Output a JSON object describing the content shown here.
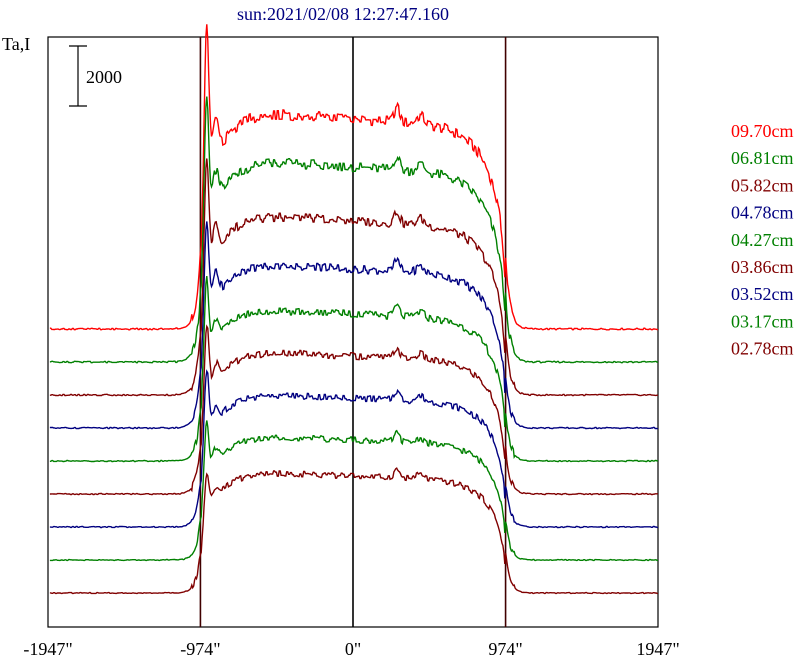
{
  "chart_data": {
    "type": "line",
    "title": "sun:2021/02/08 12:27:47.160",
    "ylabel": "Ta,I",
    "scale_bar_label": "2000",
    "scale_bar_value": 2000,
    "x_ticks": [
      {
        "value": -1947,
        "label": "-1947\""
      },
      {
        "value": -974,
        "label": "-974\""
      },
      {
        "value": 0,
        "label": "0\""
      },
      {
        "value": 974,
        "label": "974\""
      },
      {
        "value": 1947,
        "label": "1947\""
      }
    ],
    "xlim": [
      -1947,
      1947
    ],
    "vertical_lines": [
      -974,
      0,
      974
    ],
    "series": [
      {
        "name": "09.70cm",
        "color": "#ff0000",
        "baseline": 10000,
        "plateau": 7000,
        "limb": 5600
      },
      {
        "name": "06.81cm",
        "color": "#008000",
        "baseline": 8900,
        "plateau": 6500,
        "limb": 4700
      },
      {
        "name": "05.82cm",
        "color": "#800000",
        "baseline": 7800,
        "plateau": 5800,
        "limb": 4100
      },
      {
        "name": "04.78cm",
        "color": "#000080",
        "baseline": 6700,
        "plateau": 5300,
        "limb": 3600
      },
      {
        "name": "04.27cm",
        "color": "#008000",
        "baseline": 5600,
        "plateau": 4900,
        "limb": 3000
      },
      {
        "name": "03.86cm",
        "color": "#800000",
        "baseline": 4500,
        "plateau": 4600,
        "limb": 2700
      },
      {
        "name": "03.52cm",
        "color": "#000080",
        "baseline": 3400,
        "plateau": 4300,
        "limb": 2500
      },
      {
        "name": "03.17cm",
        "color": "#008000",
        "baseline": 2300,
        "plateau": 4000,
        "limb": 2100
      },
      {
        "name": "02.78cm",
        "color": "#800000",
        "baseline": 1200,
        "plateau": 3900,
        "limb": 1400
      }
    ]
  }
}
